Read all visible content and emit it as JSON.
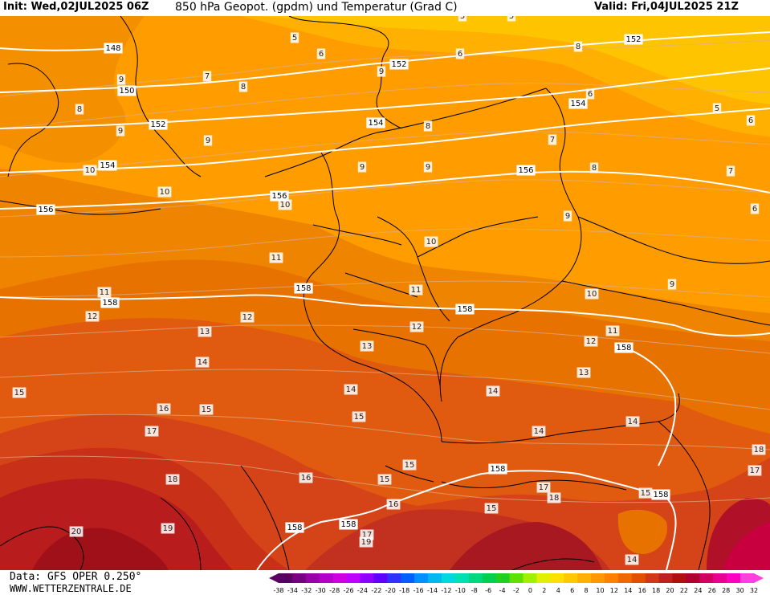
{
  "header": {
    "init": "Init: Wed,02JUL2025 06Z",
    "title": "850 hPa Geopot. (gpdm) und Temperatur (Grad C)",
    "valid": "Valid: Fri,04JUL2025 21Z"
  },
  "footer": {
    "data_source": "Data: GFS OPER 0.250°",
    "website": "WWW.WETTERZENTRALE.DE"
  },
  "legend": {
    "ticks": [
      "-38",
      "-34",
      "-32",
      "-30",
      "-28",
      "-26",
      "-24",
      "-22",
      "-20",
      "-18",
      "-16",
      "-14",
      "-12",
      "-10",
      "-8",
      "-6",
      "-4",
      "-2",
      "0",
      "2",
      "4",
      "6",
      "8",
      "10",
      "12",
      "14",
      "16",
      "18",
      "20",
      "22",
      "24",
      "26",
      "28",
      "30",
      "32"
    ],
    "colors": [
      "#5a0060",
      "#780080",
      "#9800a8",
      "#b400c8",
      "#d000e0",
      "#c000ff",
      "#9000ff",
      "#6000ff",
      "#3030ff",
      "#0060ff",
      "#0090ff",
      "#00b8f0",
      "#00d8e0",
      "#00e0b0",
      "#00d880",
      "#00d050",
      "#20d020",
      "#60e000",
      "#a0f000",
      "#e0f000",
      "#ffe000",
      "#ffc800",
      "#ffb000",
      "#ff9800",
      "#ff8000",
      "#f06800",
      "#e05000",
      "#d03818",
      "#c02020",
      "#b01010",
      "#b00030",
      "#d00060",
      "#e80090",
      "#ff00c0",
      "#ff40e0"
    ]
  },
  "map": {
    "temperature_levels": [
      "5",
      "6",
      "7",
      "8",
      "9",
      "10",
      "11",
      "12",
      "13",
      "14",
      "15",
      "16",
      "17",
      "18",
      "19",
      "20"
    ],
    "geopotential_levels": [
      "148",
      "150",
      "152",
      "154",
      "156",
      "158"
    ],
    "geopotential_labels": [
      {
        "text": "148"
      },
      {
        "text": "150"
      },
      {
        "text": "152"
      },
      {
        "text": "152"
      },
      {
        "text": "152"
      },
      {
        "text": "154"
      },
      {
        "text": "154"
      },
      {
        "text": "154"
      },
      {
        "text": "156"
      },
      {
        "text": "156"
      },
      {
        "text": "156"
      },
      {
        "text": "158"
      },
      {
        "text": "158"
      },
      {
        "text": "158"
      },
      {
        "text": "158"
      },
      {
        "text": "158"
      },
      {
        "text": "158"
      },
      {
        "text": "158"
      },
      {
        "text": "158"
      }
    ],
    "temperature_labels": [
      {
        "text": "5"
      },
      {
        "text": "5"
      },
      {
        "text": "5"
      },
      {
        "text": "5"
      },
      {
        "text": "6"
      },
      {
        "text": "6"
      },
      {
        "text": "6"
      },
      {
        "text": "6"
      },
      {
        "text": "6"
      },
      {
        "text": "7"
      },
      {
        "text": "7"
      },
      {
        "text": "7"
      },
      {
        "text": "8"
      },
      {
        "text": "8"
      },
      {
        "text": "8"
      },
      {
        "text": "8"
      },
      {
        "text": "8"
      },
      {
        "text": "9"
      },
      {
        "text": "9"
      },
      {
        "text": "9"
      },
      {
        "text": "9"
      },
      {
        "text": "9"
      },
      {
        "text": "9"
      },
      {
        "text": "9"
      },
      {
        "text": "9"
      },
      {
        "text": "10"
      },
      {
        "text": "10"
      },
      {
        "text": "10"
      },
      {
        "text": "10"
      },
      {
        "text": "10"
      },
      {
        "text": "11"
      },
      {
        "text": "11"
      },
      {
        "text": "11"
      },
      {
        "text": "11"
      },
      {
        "text": "12"
      },
      {
        "text": "12"
      },
      {
        "text": "12"
      },
      {
        "text": "12"
      },
      {
        "text": "13"
      },
      {
        "text": "13"
      },
      {
        "text": "13"
      },
      {
        "text": "14"
      },
      {
        "text": "14"
      },
      {
        "text": "14"
      },
      {
        "text": "14"
      },
      {
        "text": "14"
      },
      {
        "text": "14"
      },
      {
        "text": "15"
      },
      {
        "text": "15"
      },
      {
        "text": "15"
      },
      {
        "text": "15"
      },
      {
        "text": "15"
      },
      {
        "text": "15"
      },
      {
        "text": "15"
      },
      {
        "text": "16"
      },
      {
        "text": "16"
      },
      {
        "text": "16"
      },
      {
        "text": "17"
      },
      {
        "text": "17"
      },
      {
        "text": "17"
      },
      {
        "text": "17"
      },
      {
        "text": "18"
      },
      {
        "text": "18"
      },
      {
        "text": "18"
      },
      {
        "text": "19"
      },
      {
        "text": "19"
      },
      {
        "text": "20"
      }
    ]
  }
}
